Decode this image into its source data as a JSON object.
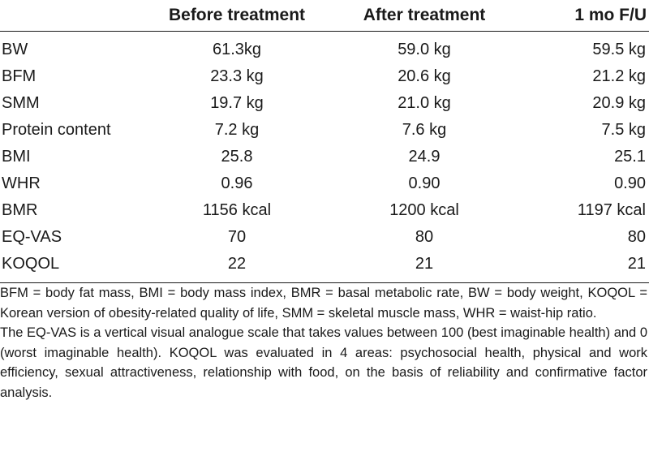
{
  "table": {
    "headers": [
      "",
      "Before treatment",
      "After treatment",
      "1 mo F/U"
    ],
    "rows": [
      [
        "BW",
        "61.3kg",
        "59.0 kg",
        "59.5 kg"
      ],
      [
        "BFM",
        "23.3 kg",
        "20.6 kg",
        "21.2 kg"
      ],
      [
        "SMM",
        "19.7 kg",
        "21.0 kg",
        "20.9 kg"
      ],
      [
        "Protein content",
        "7.2 kg",
        "7.6 kg",
        "7.5 kg"
      ],
      [
        "BMI",
        "25.8",
        "24.9",
        "25.1"
      ],
      [
        "WHR",
        "0.96",
        "0.90",
        "0.90"
      ],
      [
        "BMR",
        "1156 kcal",
        "1200 kcal",
        "1197 kcal"
      ],
      [
        "EQ-VAS",
        "70",
        "80",
        "80"
      ],
      [
        "KOQOL",
        "22",
        "21",
        "21"
      ]
    ]
  },
  "footnotes": {
    "abbreviations": "BFM = body fat mass, BMI = body mass index, BMR = basal metabolic rate, BW = body weight, KOQOL = Korean version of obesity-related quality of life, SMM = skeletal muscle mass, WHR = waist-hip ratio.",
    "description": "The EQ-VAS is a vertical visual analogue scale that takes values between 100 (best imaginable health) and 0 (worst imaginable health). KOQOL was evaluated in 4 areas: psychosocial health, physical and work efficiency, sexual attractiveness, relationship with food, on the basis of reliability and confirmative factor analysis."
  }
}
